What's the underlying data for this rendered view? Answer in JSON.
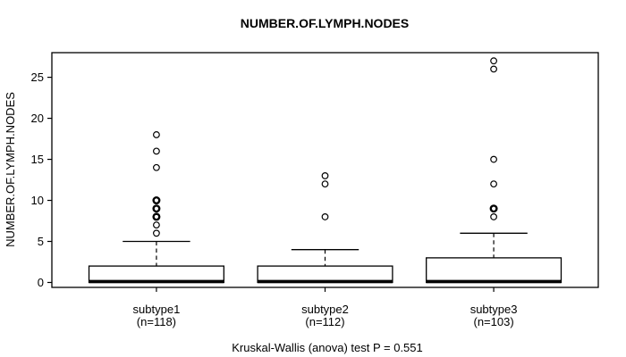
{
  "chart_data": {
    "type": "boxplot",
    "title": "NUMBER.OF.LYMPH.NODES",
    "ylabel": "NUMBER.OF.LYMPH.NODES",
    "xlabel": "",
    "caption": "Kruskal-Wallis (anova) test P = 0.551",
    "ylim": [
      -0.6,
      28
    ],
    "yticks": [
      0,
      5,
      10,
      15,
      20,
      25
    ],
    "grid": false,
    "legend": false,
    "colors": {
      "stroke": "#000000",
      "box_fill": "#ffffff",
      "background": "#ffffff"
    },
    "groups": [
      {
        "label": "subtype1",
        "sublabel": "(n=118)",
        "n": 118,
        "q1": 0,
        "median": 0,
        "q3": 2,
        "whisker_low": 0,
        "whisker_high": 5,
        "outliers": [
          6,
          7,
          8,
          9,
          10,
          14,
          16,
          18
        ],
        "overplotted_outliers": [
          8,
          9,
          10
        ]
      },
      {
        "label": "subtype2",
        "sublabel": "(n=112)",
        "n": 112,
        "q1": 0,
        "median": 0,
        "q3": 2,
        "whisker_low": 0,
        "whisker_high": 4,
        "outliers": [
          8,
          12,
          13
        ],
        "overplotted_outliers": []
      },
      {
        "label": "subtype3",
        "sublabel": "(n=103)",
        "n": 103,
        "q1": 0,
        "median": 0,
        "q3": 3,
        "whisker_low": 0,
        "whisker_high": 6,
        "outliers": [
          8,
          9,
          12,
          15,
          26,
          27
        ],
        "overplotted_outliers": [
          9
        ]
      }
    ]
  }
}
